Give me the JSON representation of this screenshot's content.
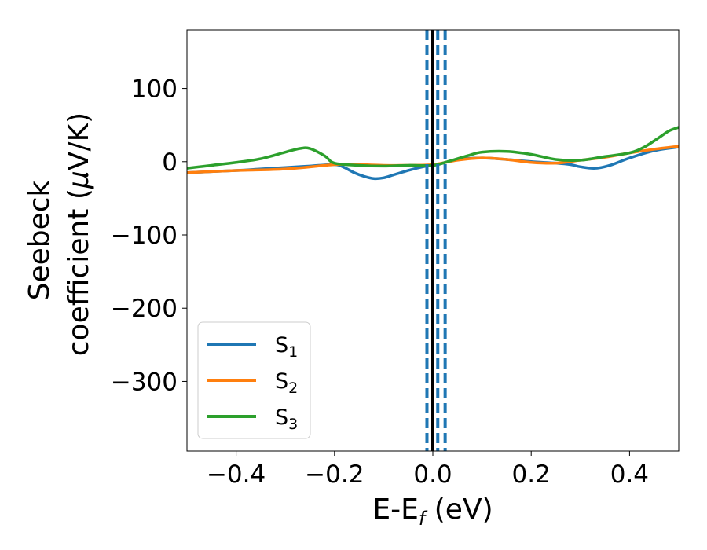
{
  "chart_data": {
    "type": "line",
    "xlabel": "E-E",
    "xlabel_sub": "f",
    "xlabel_unit": " (eV)",
    "ylabel_line1": "Seebeck",
    "ylabel_line2_prefix": "coefficient  (",
    "ylabel_mu": "μ",
    "ylabel_line2_suffix": "V/K)",
    "xlim": [
      -0.5,
      0.5
    ],
    "ylim": [
      -395,
      180
    ],
    "xticks": [
      -0.4,
      -0.2,
      0.0,
      0.2,
      0.4
    ],
    "xtick_labels": [
      "−0.4",
      "−0.2",
      "0.0",
      "0.2",
      "0.4"
    ],
    "yticks": [
      100,
      0,
      -100,
      -200,
      -300
    ],
    "ytick_labels": [
      "100",
      "0",
      "−100",
      "−200",
      "−300"
    ],
    "grid": false,
    "legend_position": "lower-left",
    "vlines": [
      {
        "x": 0.0,
        "style": "solid",
        "color": "#000000"
      },
      {
        "x": -0.012,
        "style": "dashed",
        "color": "#1f77b4"
      },
      {
        "x": 0.01,
        "style": "dashed",
        "color": "#1f77b4"
      },
      {
        "x": 0.025,
        "style": "dashed",
        "color": "#1f77b4"
      }
    ],
    "series": [
      {
        "name": "S",
        "sub": "1",
        "color": "#1f77b4",
        "x": [
          -0.5,
          -0.4,
          -0.35,
          -0.3,
          -0.25,
          -0.2,
          -0.18,
          -0.16,
          -0.14,
          -0.12,
          -0.1,
          -0.08,
          -0.05,
          -0.02,
          0.0,
          0.02,
          0.05,
          0.1,
          0.15,
          0.2,
          0.25,
          0.28,
          0.3,
          0.33,
          0.36,
          0.4,
          0.45,
          0.5
        ],
        "y": [
          -15,
          -12,
          -10,
          -8,
          -6,
          -4,
          -8,
          -15,
          -20,
          -23,
          -22,
          -18,
          -12,
          -7,
          -5,
          -2,
          3,
          5,
          3,
          0,
          -2,
          -4,
          -7,
          -9,
          -5,
          5,
          15,
          20
        ]
      },
      {
        "name": "S",
        "sub": "2",
        "color": "#ff7f0e",
        "x": [
          -0.5,
          -0.4,
          -0.3,
          -0.2,
          -0.15,
          -0.1,
          -0.05,
          0.0,
          0.05,
          0.1,
          0.15,
          0.2,
          0.25,
          0.3,
          0.35,
          0.4,
          0.45,
          0.5
        ],
        "y": [
          -15,
          -12,
          -10,
          -4,
          -4,
          -5,
          -5,
          -4,
          2,
          5,
          3,
          -1,
          -2,
          2,
          6,
          12,
          17,
          21
        ]
      },
      {
        "name": "S",
        "sub": "3",
        "color": "#2ca02c",
        "x": [
          -0.5,
          -0.45,
          -0.4,
          -0.35,
          -0.3,
          -0.27,
          -0.25,
          -0.22,
          -0.2,
          -0.15,
          -0.1,
          -0.05,
          0.0,
          0.03,
          0.07,
          0.1,
          0.15,
          0.2,
          0.25,
          0.3,
          0.35,
          0.4,
          0.43,
          0.46,
          0.48,
          0.5
        ],
        "y": [
          -9,
          -5,
          -1,
          4,
          13,
          18,
          18,
          8,
          -2,
          -5,
          -6,
          -5,
          -5,
          0,
          8,
          13,
          14,
          10,
          3,
          2,
          7,
          12,
          20,
          33,
          42,
          47
        ]
      }
    ]
  }
}
